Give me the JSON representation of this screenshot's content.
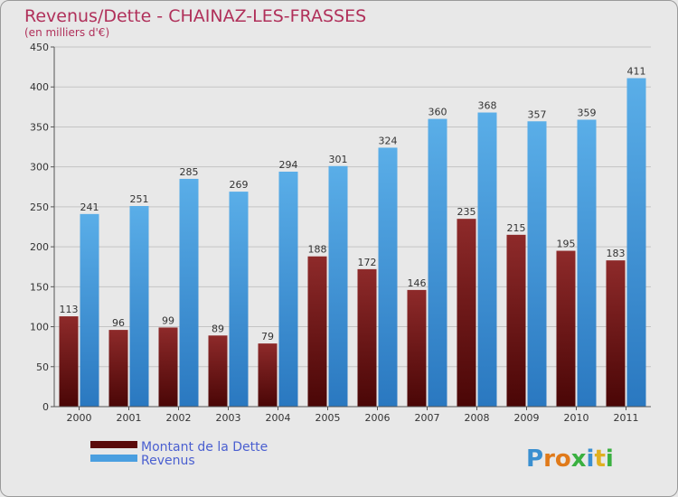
{
  "chart_data": {
    "type": "bar",
    "title": "Revenus/Dette - CHAINAZ-LES-FRASSES",
    "subtitle": "(en milliers d'€)",
    "categories": [
      "2000",
      "2001",
      "2002",
      "2003",
      "2004",
      "2005",
      "2006",
      "2007",
      "2008",
      "2009",
      "2010",
      "2011"
    ],
    "series": [
      {
        "name": "Montant de la Dette",
        "color": "#7a1a1a",
        "values": [
          113,
          96,
          99,
          89,
          79,
          188,
          172,
          146,
          235,
          215,
          195,
          183
        ]
      },
      {
        "name": "Revenus",
        "color": "#4a9fe0",
        "values": [
          241,
          251,
          285,
          269,
          294,
          301,
          324,
          360,
          368,
          357,
          359,
          411
        ]
      }
    ],
    "ylim": [
      0,
      450
    ],
    "yticks": [
      0,
      50,
      100,
      150,
      200,
      250,
      300,
      350,
      400,
      450
    ],
    "grid": true,
    "legend": "bottom-left"
  },
  "watermark": "Proxiti"
}
